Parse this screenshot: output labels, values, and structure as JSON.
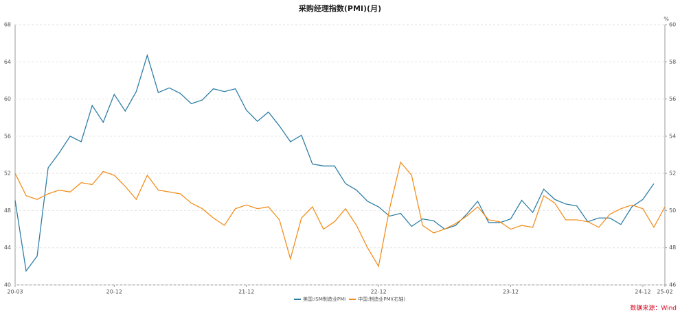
{
  "chart_data": {
    "type": "line",
    "title": "采购经理指数(PMI)(月)",
    "y2_unit": "%",
    "source": "数据来源：Wind",
    "categories": [
      "20-03",
      null,
      null,
      null,
      null,
      null,
      null,
      null,
      null,
      "20-12",
      null,
      null,
      null,
      null,
      null,
      null,
      null,
      null,
      null,
      null,
      null,
      "21-12",
      null,
      null,
      null,
      null,
      null,
      null,
      null,
      null,
      null,
      null,
      null,
      "22-12",
      null,
      null,
      null,
      null,
      null,
      null,
      null,
      null,
      null,
      null,
      null,
      "23-12",
      null,
      null,
      null,
      null,
      null,
      null,
      null,
      null,
      null,
      null,
      null,
      "24-12",
      null,
      "25-02"
    ],
    "series": [
      {
        "name": "美国:ISM制造业PMI",
        "color": "#2e7ea6",
        "axis": "y",
        "values": [
          49.1,
          41.5,
          43.1,
          52.6,
          54.2,
          56.0,
          55.4,
          59.3,
          57.5,
          60.5,
          58.7,
          60.8,
          64.7,
          60.7,
          61.2,
          60.6,
          59.5,
          59.9,
          61.1,
          60.8,
          61.1,
          58.8,
          57.6,
          58.6,
          57.1,
          55.4,
          56.1,
          53.0,
          52.8,
          52.8,
          50.9,
          50.2,
          49.0,
          48.4,
          47.4,
          47.7,
          46.3,
          47.1,
          46.9,
          46.0,
          46.4,
          47.6,
          49.0,
          46.7,
          46.7,
          47.1,
          49.1,
          47.8,
          50.3,
          49.2,
          48.7,
          48.5,
          46.8,
          47.2,
          47.2,
          46.5,
          48.4,
          49.2,
          50.9,
          null
        ]
      },
      {
        "name": "中国:制造业PMI(右轴)",
        "color": "#f28e1c",
        "axis": "y2",
        "values": [
          52.0,
          50.8,
          50.6,
          50.9,
          51.1,
          51.0,
          51.5,
          51.4,
          52.1,
          51.9,
          51.3,
          50.6,
          51.9,
          51.1,
          51.0,
          50.9,
          50.4,
          50.1,
          49.6,
          49.2,
          50.1,
          50.3,
          50.1,
          50.2,
          49.5,
          47.4,
          49.6,
          50.2,
          49.0,
          49.4,
          50.1,
          49.2,
          48.0,
          47.0,
          50.1,
          52.6,
          51.9,
          49.2,
          48.8,
          49.0,
          49.3,
          49.7,
          50.2,
          49.5,
          49.4,
          49.0,
          49.2,
          49.1,
          50.8,
          50.4,
          49.5,
          49.5,
          49.4,
          49.1,
          49.8,
          50.1,
          50.3,
          50.1,
          49.1,
          50.2
        ]
      }
    ],
    "ylim": [
      40,
      68
    ],
    "yticks": [
      40,
      44,
      48,
      52,
      56,
      60,
      64,
      68
    ],
    "y2lim": [
      46,
      60
    ],
    "y2ticks": [
      46,
      48,
      50,
      52,
      54,
      56,
      58,
      60
    ],
    "grid": true
  }
}
